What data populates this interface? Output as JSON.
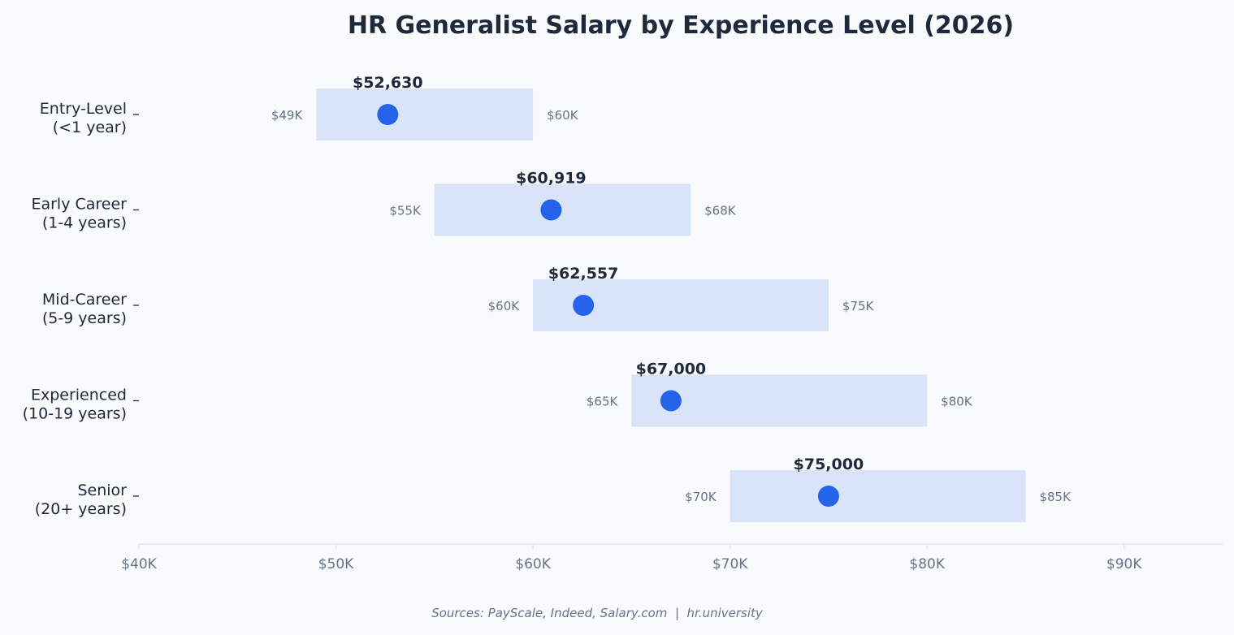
{
  "chart_data": {
    "type": "range-dot",
    "title": "HR Generalist Salary by Experience Level (2026)",
    "categories": [
      [
        "Entry-Level",
        "(<1 year)"
      ],
      [
        "Early Career",
        "(1-4 years)"
      ],
      [
        "Mid-Career",
        "(5-9 years)"
      ],
      [
        "Experienced",
        "(10-19 years)"
      ],
      [
        "Senior",
        "(20+ years)"
      ]
    ],
    "low": [
      49000,
      55000,
      60000,
      65000,
      70000
    ],
    "high": [
      60000,
      68000,
      75000,
      80000,
      85000
    ],
    "median": [
      52630,
      60919,
      62557,
      67000,
      75000
    ],
    "low_labels": [
      "$49K",
      "$55K",
      "$60K",
      "$65K",
      "$70K"
    ],
    "high_labels": [
      "$60K",
      "$68K",
      "$75K",
      "$80K",
      "$85K"
    ],
    "median_labels": [
      "$52,630",
      "$60,919",
      "$62,557",
      "$67,000",
      "$75,000"
    ],
    "xlim": [
      40000,
      95000
    ],
    "xticks": [
      40000,
      50000,
      60000,
      70000,
      80000,
      90000
    ],
    "xtick_labels": [
      "$40K",
      "$50K",
      "$60K",
      "$70K",
      "$80K",
      "$90K"
    ],
    "xlabel": "",
    "ylabel": "",
    "grid": false,
    "colors": {
      "range_fill": "#dae4f8",
      "median_dot": "#2563eb",
      "axis": "#e2e8f0",
      "text_dark": "#1e293b",
      "text_muted": "#64748b",
      "background": "#f8fafc"
    }
  },
  "footer": {
    "source": "Sources: PayScale, Indeed, Salary.com  |  hr.university"
  }
}
